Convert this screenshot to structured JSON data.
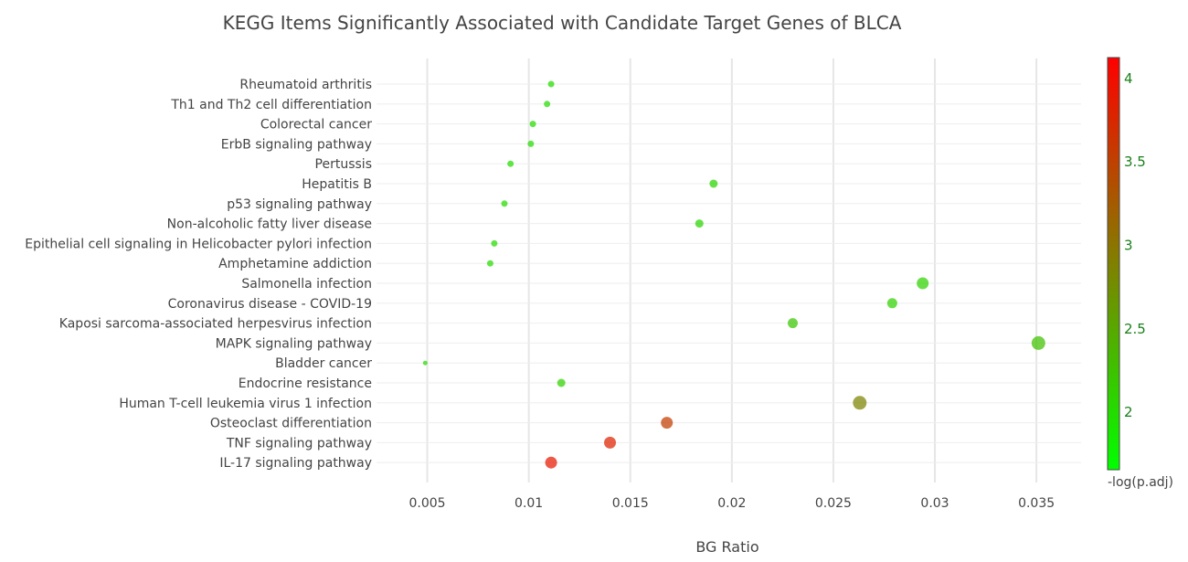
{
  "chart_data": {
    "type": "scatter",
    "title": "KEGG Items Significantly Associated with Candidate Target Genes of BLCA",
    "xlabel": "BG Ratio",
    "ylabel": "",
    "xlim": [
      0.0025,
      0.0372
    ],
    "xticks": [
      0.005,
      0.01,
      0.015,
      0.02,
      0.025,
      0.03,
      0.035
    ],
    "xtick_labels": [
      "0.005",
      "0.01",
      "0.015",
      "0.02",
      "0.025",
      "0.03",
      "0.035"
    ],
    "grid": true,
    "colorbar": {
      "title": "-log(p.adj)",
      "range": [
        1.65,
        4.12
      ],
      "ticks": [
        2,
        2.5,
        3,
        3.5,
        4
      ],
      "tick_labels": [
        "2",
        "2.5",
        "3",
        "3.5",
        "4"
      ],
      "color_low": "#00ff00",
      "color_high": "#ff0000"
    },
    "points": [
      {
        "label": "Rheumatoid arthritis",
        "x": 0.0111,
        "color_value": 2.0,
        "size": 3
      },
      {
        "label": "Th1 and Th2 cell differentiation",
        "x": 0.0109,
        "color_value": 2.0,
        "size": 3
      },
      {
        "label": "Colorectal cancer",
        "x": 0.0102,
        "color_value": 2.0,
        "size": 3
      },
      {
        "label": "ErbB signaling pathway",
        "x": 0.0101,
        "color_value": 2.0,
        "size": 3
      },
      {
        "label": "Pertussis",
        "x": 0.0091,
        "color_value": 2.0,
        "size": 3
      },
      {
        "label": "Hepatitis B",
        "x": 0.0191,
        "color_value": 2.05,
        "size": 4
      },
      {
        "label": "p53 signaling pathway",
        "x": 0.0088,
        "color_value": 2.0,
        "size": 3
      },
      {
        "label": "Non-alcoholic fatty liver disease",
        "x": 0.0184,
        "color_value": 2.05,
        "size": 4
      },
      {
        "label": "Epithelial cell signaling in Helicobacter pylori infection",
        "x": 0.0083,
        "color_value": 2.0,
        "size": 3
      },
      {
        "label": "Amphetamine addiction",
        "x": 0.0081,
        "color_value": 2.0,
        "size": 3
      },
      {
        "label": "Salmonella infection",
        "x": 0.0294,
        "color_value": 2.1,
        "size": 6
      },
      {
        "label": "Coronavirus disease - COVID-19",
        "x": 0.0279,
        "color_value": 2.1,
        "size": 5
      },
      {
        "label": "Kaposi sarcoma-associated herpesvirus infection",
        "x": 0.023,
        "color_value": 2.2,
        "size": 5
      },
      {
        "label": "MAPK signaling pathway",
        "x": 0.0351,
        "color_value": 2.25,
        "size": 7
      },
      {
        "label": "Bladder cancer",
        "x": 0.0049,
        "color_value": 2.0,
        "size": 2
      },
      {
        "label": "Endocrine resistance",
        "x": 0.0116,
        "color_value": 2.1,
        "size": 4
      },
      {
        "label": "Human T-cell leukemia virus 1 infection",
        "x": 0.0263,
        "color_value": 2.85,
        "size": 7
      },
      {
        "label": "Osteoclast differentiation",
        "x": 0.0168,
        "color_value": 3.55,
        "size": 6
      },
      {
        "label": "TNF signaling pathway",
        "x": 0.014,
        "color_value": 3.8,
        "size": 6
      },
      {
        "label": "IL-17 signaling pathway",
        "x": 0.0111,
        "color_value": 3.9,
        "size": 6
      }
    ]
  }
}
